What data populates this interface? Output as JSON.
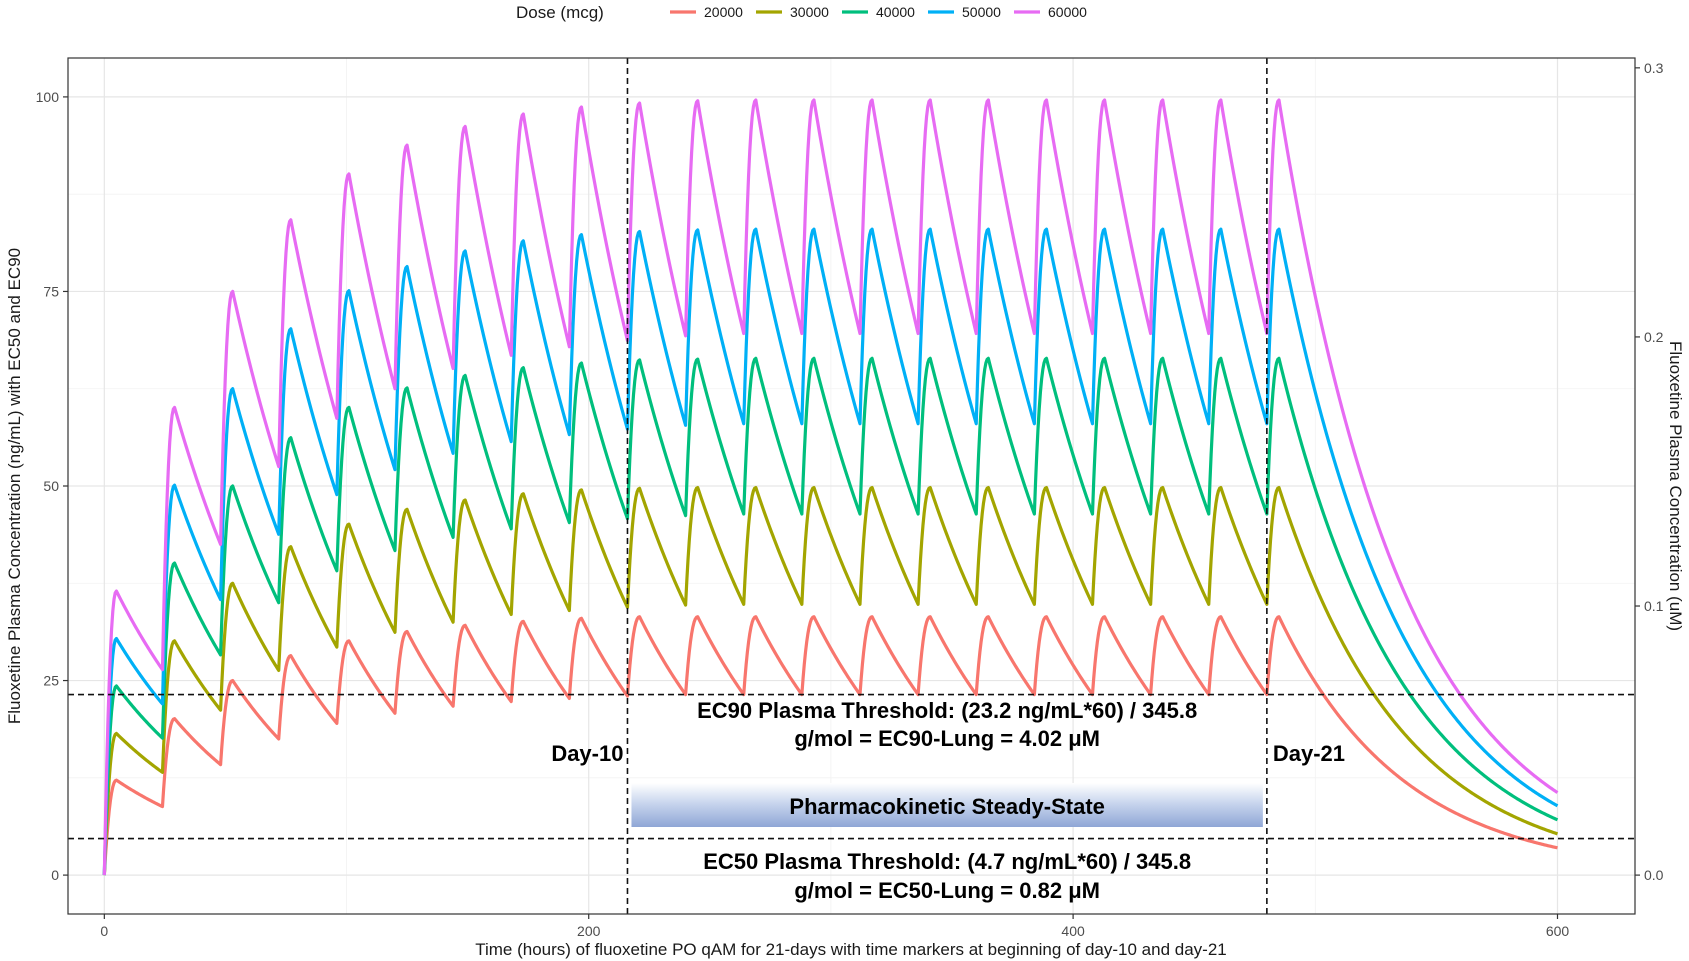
{
  "chart_data": {
    "type": "line",
    "legend": {
      "title": "Dose (mcg)",
      "placement": "top",
      "entries": [
        "20000",
        "30000",
        "40000",
        "50000",
        "60000"
      ]
    },
    "colors": [
      "#f8766d",
      "#a3a500",
      "#00bf7d",
      "#00b0f6",
      "#e76bf3"
    ],
    "xlabel": "Time (hours) of fluoxetine PO qAM for 21-days with time markers at beginning of day-10 and day-21",
    "ylabel": "Fluoxetine Plasma Concentration (ng/mL) with EC50 and EC90",
    "ylabel_right": "Fluoxetine Plasma Concentration (uM)",
    "xlim": [
      -15,
      632
    ],
    "ylim": [
      -5,
      105
    ],
    "ylim_right": [
      -0.01446,
      0.30366
    ],
    "x_ticks": [
      0,
      200,
      400,
      600
    ],
    "x_tick_labels": [
      "0",
      "200",
      "400",
      "600"
    ],
    "y_ticks": [
      0,
      25,
      50,
      75,
      100
    ],
    "y_tick_labels": [
      "0",
      "25",
      "50",
      "75",
      "100"
    ],
    "y_right_ticks": [
      0.0,
      0.1,
      0.2,
      0.3
    ],
    "y_right_tick_labels": [
      "0.0",
      "0.1",
      "0.2",
      "0.3"
    ],
    "grid": true,
    "dosing_interval_hours": 24,
    "last_dose_hours": 480,
    "end_hours": 600,
    "series": [
      {
        "name": "20000",
        "peaks": [
          12.2,
          20.1,
          25.0,
          28.2,
          30.1,
          31.3,
          32.1,
          32.6,
          33.0,
          33.2,
          33.2,
          33.2,
          33.2,
          33.2,
          33.2,
          33.2,
          33.2,
          33.2,
          33.2,
          33.2,
          33.2
        ],
        "troughs": [
          8.8,
          14.2,
          17.5,
          19.5,
          20.8,
          21.7,
          22.3,
          22.7,
          23.0,
          23.2,
          23.2,
          23.2,
          23.2,
          23.2,
          23.2,
          23.2,
          23.2,
          23.2,
          23.2,
          23.2
        ],
        "end_value": 3.5
      },
      {
        "name": "30000",
        "peaks": [
          18.2,
          30.1,
          37.5,
          42.2,
          45.1,
          47.0,
          48.2,
          49.0,
          49.5,
          49.7,
          49.8,
          49.8,
          49.8,
          49.8,
          49.8,
          49.8,
          49.8,
          49.8,
          49.8,
          49.8,
          49.8
        ],
        "troughs": [
          13.2,
          21.2,
          26.3,
          29.3,
          31.2,
          32.5,
          33.5,
          34.0,
          34.4,
          34.7,
          34.8,
          34.8,
          34.8,
          34.8,
          34.8,
          34.8,
          34.8,
          34.8,
          34.8,
          34.8
        ],
        "end_value": 5.3
      },
      {
        "name": "40000",
        "peaks": [
          24.3,
          40.1,
          50.0,
          56.2,
          60.1,
          62.6,
          64.2,
          65.2,
          65.8,
          66.2,
          66.3,
          66.4,
          66.4,
          66.4,
          66.4,
          66.4,
          66.4,
          66.4,
          66.4,
          66.4,
          66.4
        ],
        "troughs": [
          17.6,
          28.3,
          35.0,
          39.1,
          41.7,
          43.4,
          44.5,
          45.3,
          45.8,
          46.2,
          46.4,
          46.4,
          46.4,
          46.4,
          46.4,
          46.4,
          46.4,
          46.4,
          46.4,
          46.4
        ],
        "end_value": 7.1
      },
      {
        "name": "50000",
        "peaks": [
          30.4,
          50.1,
          62.5,
          70.2,
          75.1,
          78.2,
          80.2,
          81.5,
          82.3,
          82.7,
          82.9,
          83.0,
          83.0,
          83.0,
          83.0,
          83.0,
          83.0,
          83.0,
          83.0,
          83.0,
          83.0
        ],
        "troughs": [
          22.0,
          35.4,
          43.8,
          48.9,
          52.1,
          54.2,
          55.7,
          56.6,
          57.3,
          57.8,
          58.0,
          58.0,
          58.0,
          58.0,
          58.0,
          58.0,
          58.0,
          58.0,
          58.0,
          58.0
        ],
        "end_value": 8.9
      },
      {
        "name": "60000",
        "peaks": [
          36.5,
          60.1,
          75.0,
          84.2,
          90.1,
          93.8,
          96.2,
          97.8,
          98.7,
          99.2,
          99.5,
          99.6,
          99.6,
          99.6,
          99.6,
          99.6,
          99.6,
          99.6,
          99.6,
          99.6,
          99.6
        ],
        "troughs": [
          26.4,
          42.5,
          52.5,
          58.7,
          62.5,
          65.1,
          66.8,
          67.9,
          68.7,
          69.3,
          69.6,
          69.6,
          69.6,
          69.6,
          69.6,
          69.6,
          69.6,
          69.6,
          69.6,
          69.6
        ],
        "end_value": 10.6
      }
    ],
    "reference_lines": {
      "horizontal": [
        23.2,
        4.7
      ],
      "vertical": [
        216,
        480
      ]
    },
    "annotations": {
      "day10_label": "Day-10",
      "day21_label": "Day-21",
      "ec90_line1": "EC90 Plasma Threshold: (23.2 ng/mL*60) / 345.8",
      "ec90_line2": "g/mol = EC90-Lung = 4.02 μM",
      "steady_state_label": "Pharmacokinetic Steady-State",
      "ec50_line1": "EC50 Plasma Threshold: (4.7 ng/mL*60) / 345.8",
      "ec50_line2": "g/mol = EC50-Lung = 0.82 μM"
    }
  }
}
